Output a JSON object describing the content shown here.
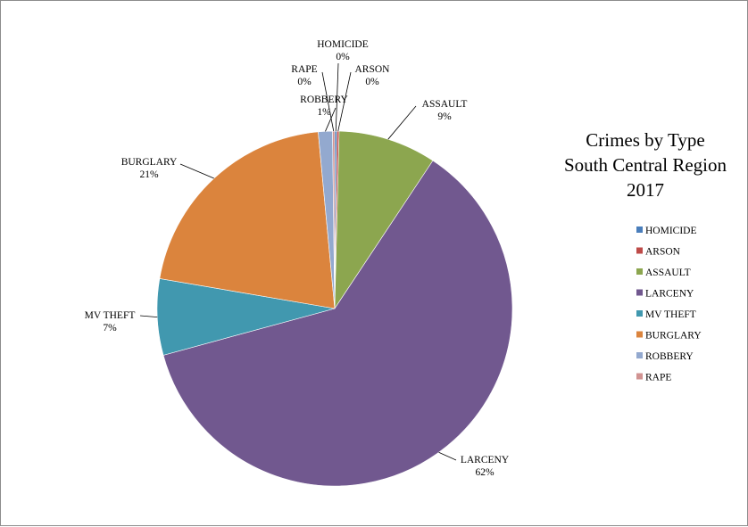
{
  "chart_data": {
    "type": "pie",
    "title": [
      "Crimes by Type",
      "South Central Region",
      "2017"
    ],
    "categories": [
      "HOMICIDE",
      "ARSON",
      "ASSAULT",
      "LARCENY",
      "MV THEFT",
      "BURGLARY",
      "ROBBERY",
      "RAPE"
    ],
    "values": [
      0.2,
      0.2,
      9,
      62,
      7,
      21,
      1.3,
      0.2
    ],
    "labels": [
      "0%",
      "0%",
      "9%",
      "62%",
      "7%",
      "21%",
      "1%",
      "0%"
    ],
    "colors": [
      "#4a7ebb",
      "#be4b48",
      "#8ca64f",
      "#71588f",
      "#4198af",
      "#db843d",
      "#93a9cf",
      "#d19392"
    ],
    "legend_position": "right"
  }
}
